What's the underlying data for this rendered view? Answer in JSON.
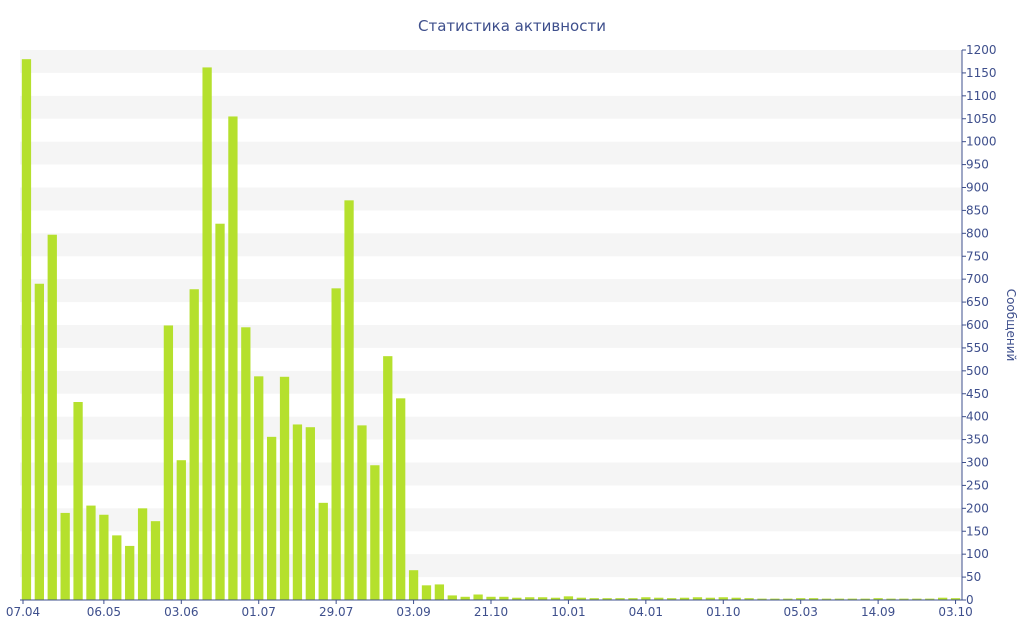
{
  "chart_data": {
    "type": "bar",
    "title": "Статистика активности",
    "xlabel": "",
    "ylabel": "Сообщений",
    "ylim": [
      0,
      1200
    ],
    "y_ticks": [
      0,
      50,
      100,
      150,
      200,
      250,
      300,
      350,
      400,
      450,
      500,
      550,
      600,
      650,
      700,
      750,
      800,
      850,
      900,
      950,
      1000,
      1050,
      1100,
      1150,
      1200
    ],
    "x_tick_labels": [
      "07.04",
      "06.05",
      "03.06",
      "01.07",
      "29.07",
      "03.09",
      "21.10",
      "10.01",
      "04.01",
      "01.10",
      "05.03",
      "14.09",
      "03.10"
    ],
    "x_tick_bar_index": [
      0,
      6,
      12,
      18,
      24,
      30,
      36,
      42,
      48,
      54,
      60,
      66,
      72
    ],
    "grid": "horizontal bands",
    "bar_color": "#b5e02d",
    "band_color": "#f5f5f5",
    "text_color": "#3e4f8c",
    "values": [
      1180,
      690,
      797,
      190,
      432,
      206,
      186,
      141,
      118,
      200,
      172,
      599,
      305,
      678,
      1162,
      821,
      1055,
      595,
      488,
      356,
      487,
      383,
      377,
      212,
      680,
      872,
      381,
      294,
      532,
      440,
      65,
      32,
      34,
      10,
      7,
      12,
      7,
      7,
      5,
      6,
      6,
      5,
      8,
      5,
      4,
      4,
      4,
      4,
      6,
      5,
      4,
      5,
      6,
      5,
      6,
      5,
      4,
      3,
      3,
      3,
      4,
      4,
      3,
      3,
      3,
      3,
      4,
      3,
      3,
      3,
      3,
      5,
      4
    ]
  }
}
